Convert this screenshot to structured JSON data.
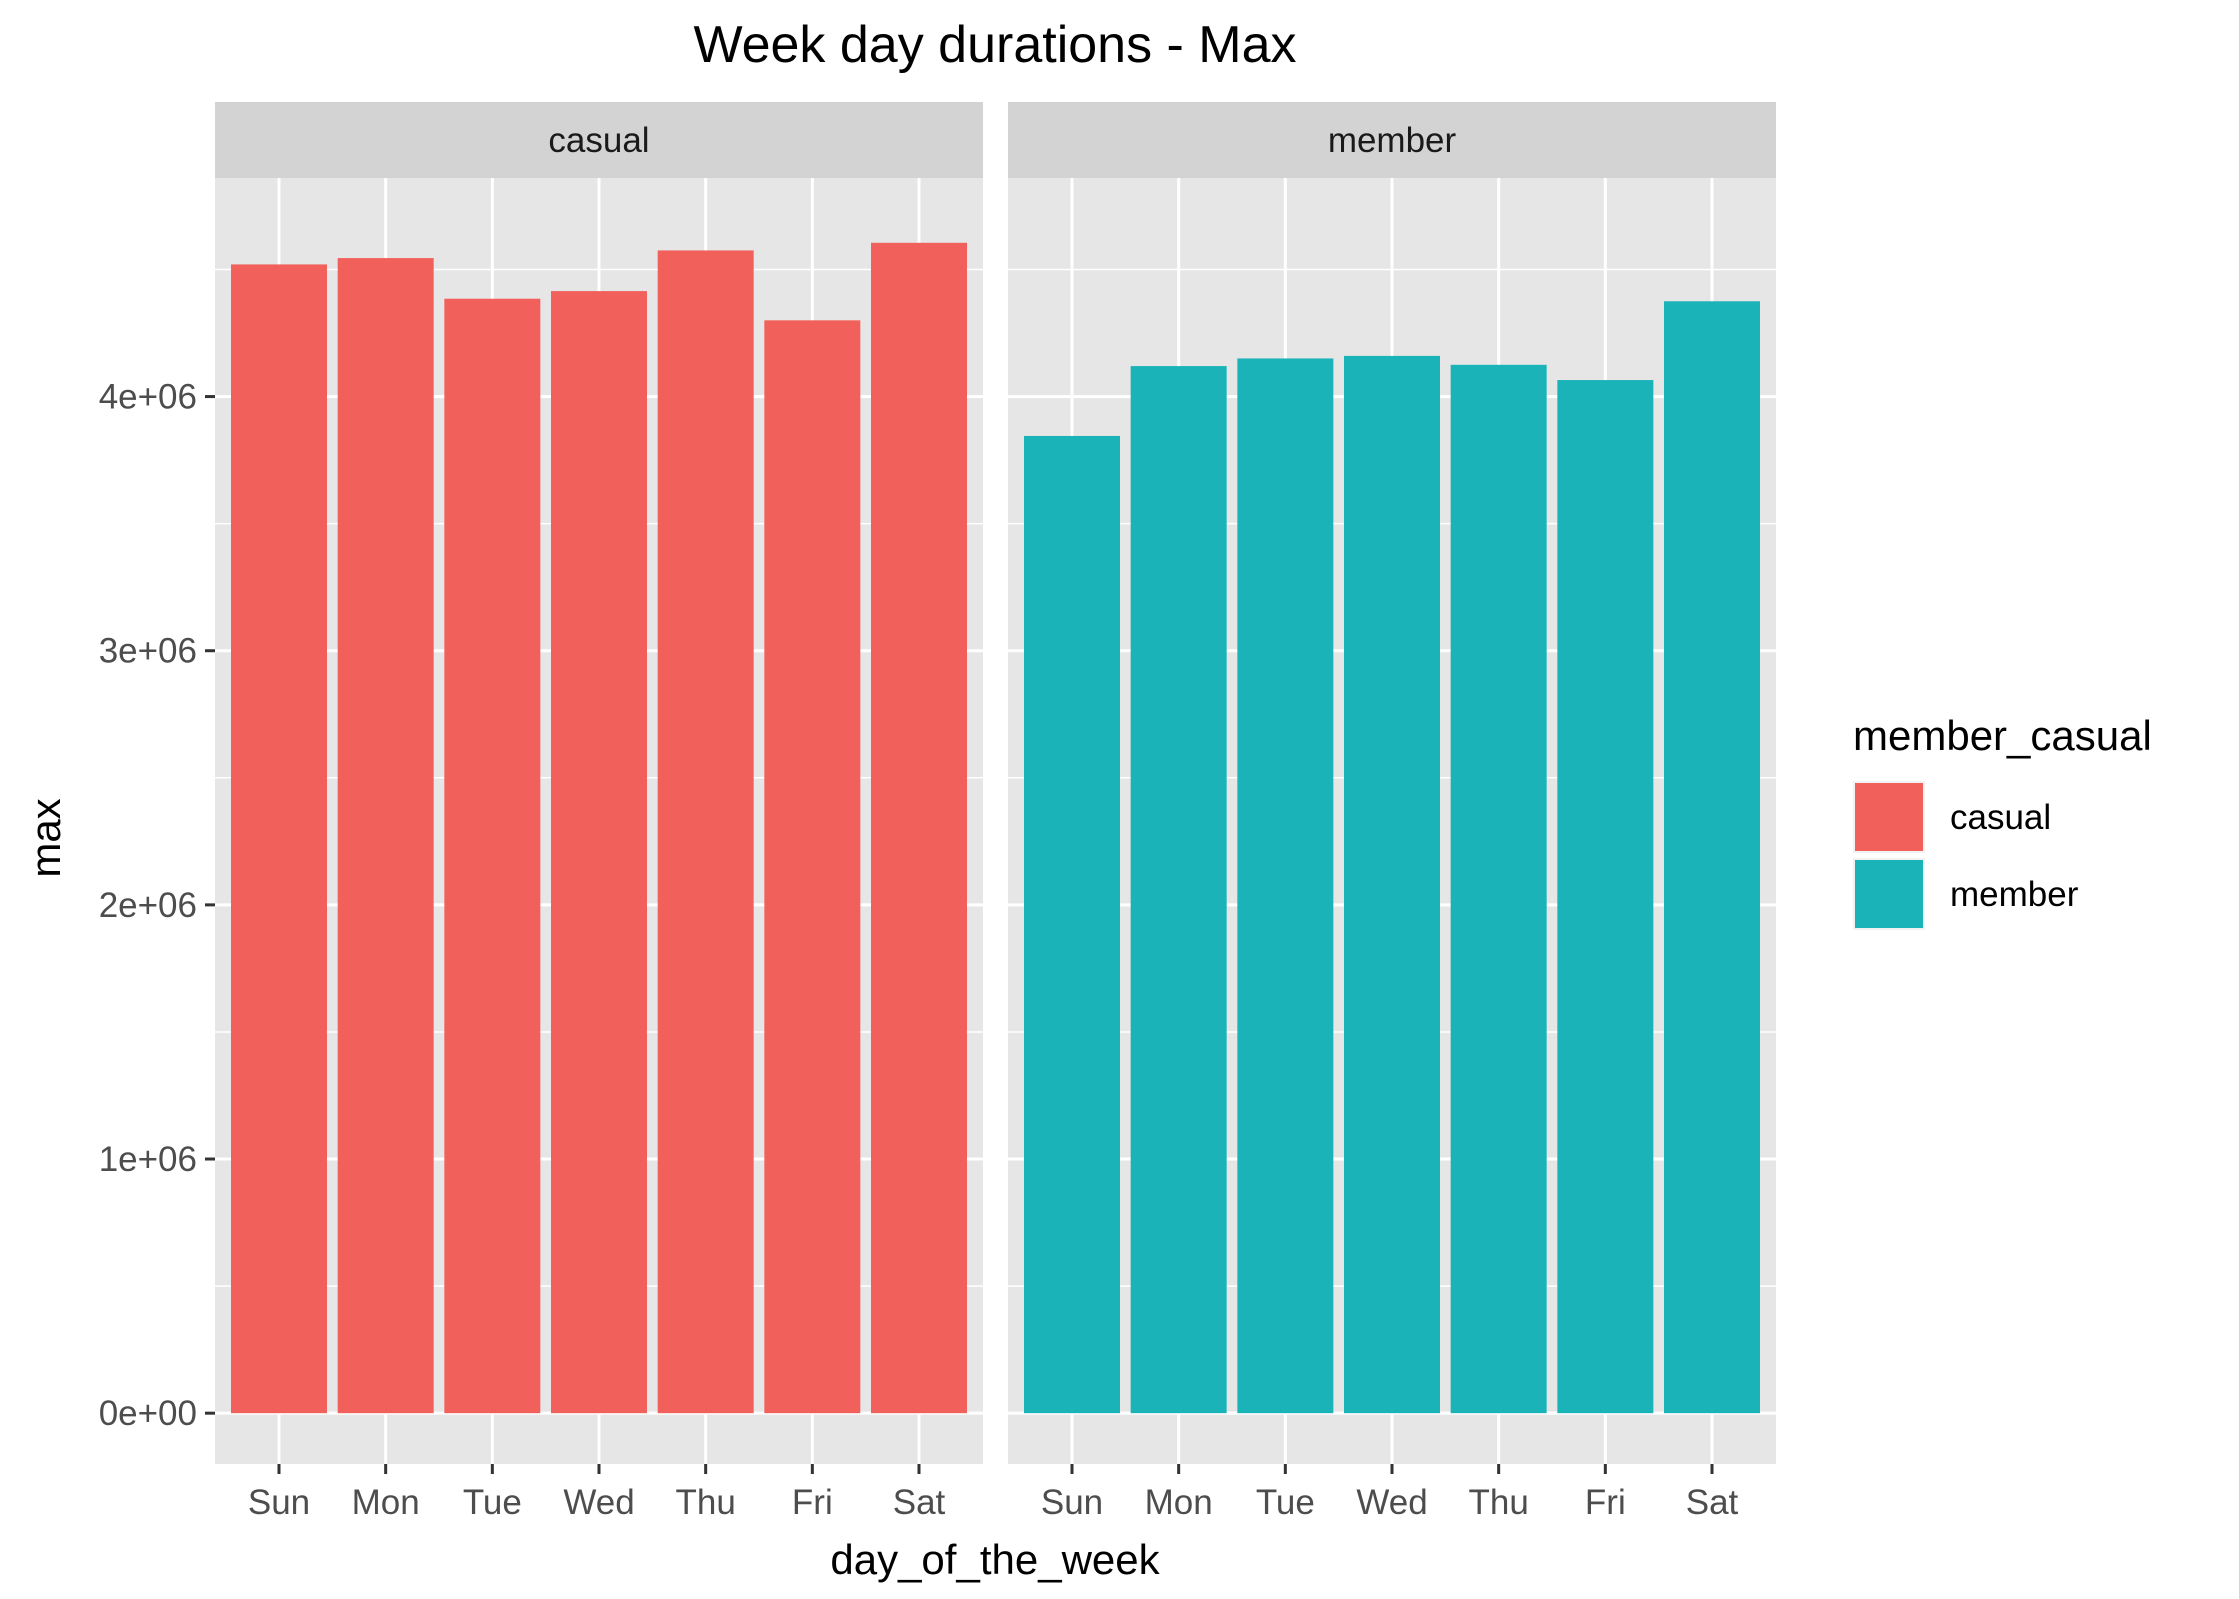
{
  "chart_data": {
    "type": "bar",
    "title": "Week day durations - Max",
    "xlabel": "day_of_the_week",
    "ylabel": "max",
    "ylim": [
      -200000,
      4860000
    ],
    "y_ticks": [
      0,
      1000000,
      2000000,
      3000000,
      4000000
    ],
    "y_tick_labels": [
      "0e+00",
      "1e+06",
      "2e+06",
      "3e+06",
      "4e+06"
    ],
    "categories": [
      "Sun",
      "Mon",
      "Tue",
      "Wed",
      "Thu",
      "Fri",
      "Sat"
    ],
    "facets": [
      {
        "name": "casual",
        "color": "#F2605B",
        "values": [
          4520000,
          4545000,
          4385000,
          4415000,
          4575000,
          4300000,
          4605000
        ]
      },
      {
        "name": "member",
        "color": "#1AB3B7",
        "values": [
          3845000,
          4120000,
          4150000,
          4160000,
          4125000,
          4065000,
          4375000
        ]
      }
    ],
    "legend": {
      "title": "member_casual",
      "position": "right",
      "entries": [
        {
          "label": "casual",
          "color": "#F2605B"
        },
        {
          "label": "member",
          "color": "#1AB3B7"
        }
      ]
    },
    "colors": {
      "panel_bg": "#E6E6E6",
      "strip_bg": "#D3D3D3",
      "grid": "#FFFFFF",
      "text": "#4D4D4D",
      "title": "#000000"
    }
  }
}
